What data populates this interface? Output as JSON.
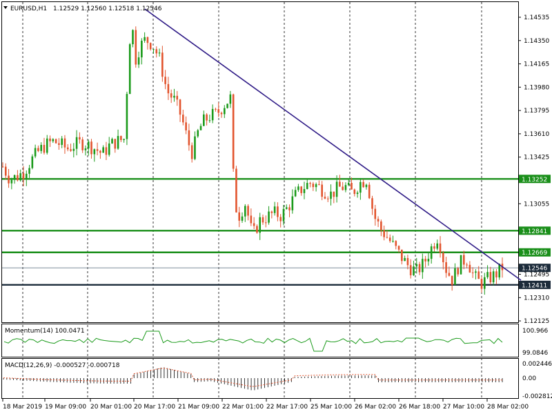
{
  "main": {
    "symbol_tf": "EURUSD,H1",
    "ohlc": "1.12529 1.12560 1.12518 1.12546",
    "price_ticks": [
      "1.14535",
      "1.14350",
      "1.14165",
      "1.13980",
      "1.13795",
      "1.13610",
      "1.13425",
      "1.13055",
      "1.12495",
      "1.12310",
      "1.12125"
    ],
    "levels": [
      {
        "label": "1.13252",
        "color": "#1a8f1a"
      },
      {
        "label": "1.12841",
        "color": "#1a8f1a"
      },
      {
        "label": "1.12669",
        "color": "#1a8f1a"
      },
      {
        "label": "1.12546",
        "color": "#1c2b3a"
      },
      {
        "label": "1.12411",
        "color": "#1c2b3a"
      }
    ]
  },
  "momentum": {
    "label": "Momentum(14) 100.0471",
    "ticks": [
      "100.966",
      "99.0846"
    ]
  },
  "macd": {
    "label": "MACD(12,26,9) -0.000527 -0.000718",
    "ticks": [
      "0.002446",
      "0.00",
      "-0.002812"
    ]
  },
  "time_axis": [
    "18 Mar 2019",
    "19 Mar 09:00",
    "20 Mar 01:00",
    "20 Mar 17:00",
    "21 Mar 09:00",
    "22 Mar 01:00",
    "22 Mar 17:00",
    "25 Mar 10:00",
    "26 Mar 02:00",
    "26 Mar 18:00",
    "27 Mar 10:00",
    "28 Mar 02:00"
  ],
  "colors": {
    "bull": "#1a9a1a",
    "bear": "#e2542e",
    "trendline": "#2e1a86",
    "level_line": "#1a8f1a",
    "grid": "#000000"
  },
  "chart_data": {
    "type": "candlestick",
    "symbol": "EURUSD",
    "timeframe": "H1",
    "ylim": [
      1.1212,
      1.1465
    ],
    "horizontal_levels": [
      1.13252,
      1.12841,
      1.12669,
      1.12546,
      1.12411
    ],
    "trendline": {
      "from": [
        "20 Mar 17:00",
        1.146
      ],
      "to": [
        "28 Mar 02:00",
        1.1247
      ]
    },
    "close_path": [
      [
        0,
        1.1335
      ],
      [
        0.5,
        1.1325
      ],
      [
        1,
        1.1327
      ],
      [
        1.5,
        1.1331
      ],
      [
        2,
        1.134
      ],
      [
        2.5,
        1.1347
      ],
      [
        3,
        1.1352
      ],
      [
        3.5,
        1.1355
      ],
      [
        4,
        1.1353
      ],
      [
        4.5,
        1.1349
      ],
      [
        5,
        1.1352
      ],
      [
        5.5,
        1.1354
      ],
      [
        6,
        1.1352
      ],
      [
        6.5,
        1.1349
      ],
      [
        7,
        1.1345
      ],
      [
        7.5,
        1.1352
      ],
      [
        8,
        1.1355
      ],
      [
        8.5,
        1.1357
      ],
      [
        9,
        1.1455
      ],
      [
        9.3,
        1.142
      ],
      [
        9.6,
        1.143
      ],
      [
        10,
        1.1436
      ],
      [
        10.5,
        1.1432
      ],
      [
        11,
        1.142
      ],
      [
        11.5,
        1.1395
      ],
      [
        12,
        1.1388
      ],
      [
        12.5,
        1.1375
      ],
      [
        13,
        1.1354
      ],
      [
        13.3,
        1.1345
      ],
      [
        13.6,
        1.136
      ],
      [
        14,
        1.137
      ],
      [
        14.5,
        1.1375
      ],
      [
        15,
        1.1377
      ],
      [
        15.5,
        1.1384
      ],
      [
        16,
        1.139
      ],
      [
        16.2,
        1.131
      ],
      [
        16.5,
        1.1295
      ],
      [
        17,
        1.1306
      ],
      [
        17.5,
        1.128
      ],
      [
        18,
        1.1292
      ],
      [
        18.5,
        1.1295
      ],
      [
        19,
        1.1298
      ],
      [
        19.5,
        1.1296
      ],
      [
        20,
        1.1303
      ],
      [
        20.5,
        1.1312
      ],
      [
        21,
        1.1318
      ],
      [
        21.5,
        1.1322
      ],
      [
        22,
        1.132
      ],
      [
        22.5,
        1.1316
      ],
      [
        23,
        1.1313
      ],
      [
        23.5,
        1.1318
      ],
      [
        24,
        1.1319
      ],
      [
        24.5,
        1.1314
      ],
      [
        25,
        1.1322
      ],
      [
        25.5,
        1.1325
      ],
      [
        26,
        1.1296
      ],
      [
        26.5,
        1.1285
      ],
      [
        27,
        1.1278
      ],
      [
        27.5,
        1.127
      ],
      [
        28,
        1.1262
      ],
      [
        28.5,
        1.1255
      ],
      [
        29,
        1.1252
      ],
      [
        29.5,
        1.1258
      ],
      [
        30,
        1.127
      ],
      [
        30.5,
        1.128
      ],
      [
        31,
        1.1255
      ],
      [
        31.5,
        1.1245
      ],
      [
        32,
        1.1258
      ],
      [
        32.5,
        1.1262
      ],
      [
        33,
        1.1248
      ],
      [
        33.5,
        1.1242
      ],
      [
        34,
        1.1246
      ],
      [
        34.5,
        1.1249
      ],
      [
        35,
        1.1255
      ]
    ]
  }
}
